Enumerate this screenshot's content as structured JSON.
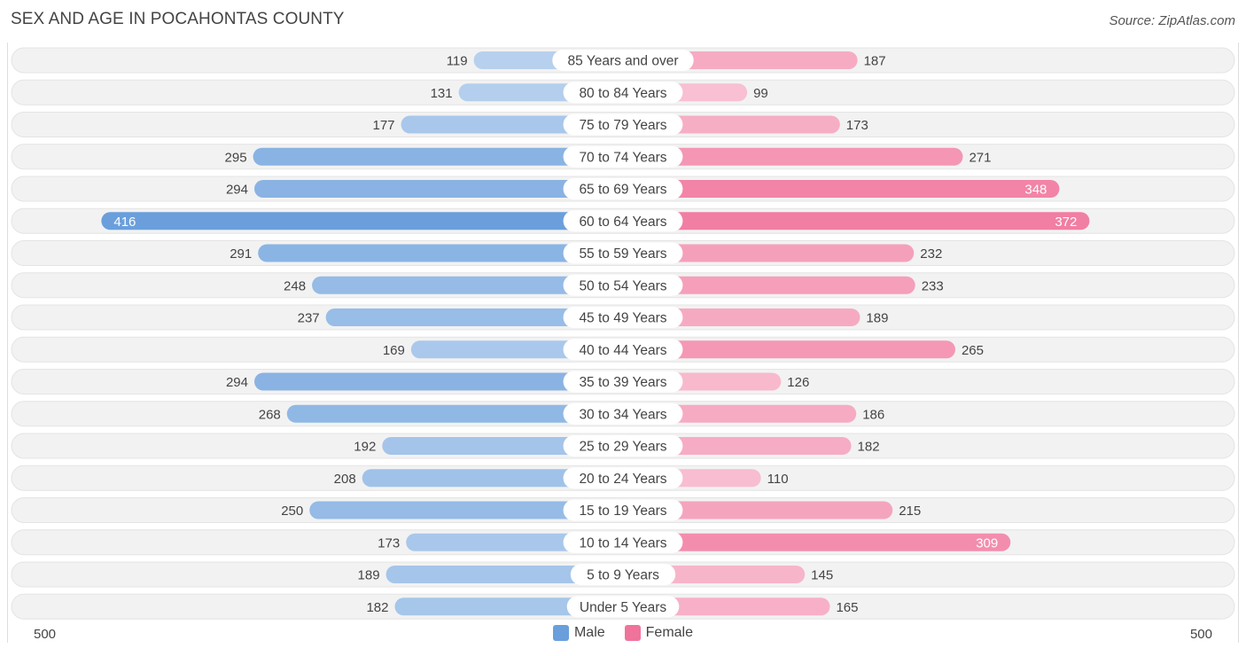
{
  "header": {
    "title": "SEX AND AGE IN POCAHONTAS COUNTY",
    "source": "Source: ZipAtlas.com"
  },
  "colors": {
    "male": "#6a9fdc",
    "female": "#f0739b",
    "row_bg": "#f1f1f1",
    "label_bg": "#ffffff"
  },
  "chart_data": {
    "type": "bar",
    "orientation": "horizontal-diverging",
    "title": "SEX AND AGE IN POCAHONTAS COUNTY",
    "xlim": [
      -500,
      500
    ],
    "axis_min_label": "500",
    "axis_max_label": "500",
    "legend_position": "bottom-center",
    "categories": [
      "85 Years and over",
      "80 to 84 Years",
      "75 to 79 Years",
      "70 to 74 Years",
      "65 to 69 Years",
      "60 to 64 Years",
      "55 to 59 Years",
      "50 to 54 Years",
      "45 to 49 Years",
      "40 to 44 Years",
      "35 to 39 Years",
      "30 to 34 Years",
      "25 to 29 Years",
      "20 to 24 Years",
      "15 to 19 Years",
      "10 to 14 Years",
      "5 to 9 Years",
      "Under 5 Years"
    ],
    "series": [
      {
        "name": "Male",
        "values": [
          119,
          131,
          177,
          295,
          294,
          416,
          291,
          248,
          237,
          169,
          294,
          268,
          192,
          208,
          250,
          173,
          189,
          182
        ]
      },
      {
        "name": "Female",
        "values": [
          187,
          99,
          173,
          271,
          348,
          372,
          232,
          233,
          189,
          265,
          126,
          186,
          182,
          110,
          215,
          309,
          145,
          165
        ]
      }
    ]
  }
}
